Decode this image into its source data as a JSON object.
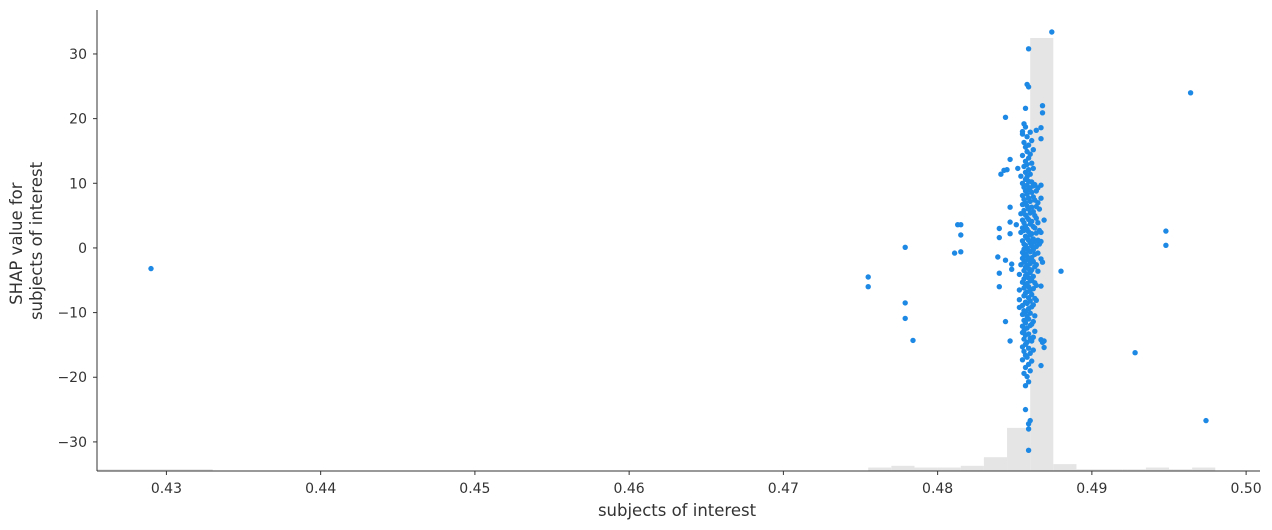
{
  "chart_data": {
    "type": "scatter",
    "title": "",
    "xlabel": "subjects of interest",
    "ylabel_lines": [
      "SHAP value for",
      "subjects of interest"
    ],
    "xlim": [
      0.4255,
      0.5009
    ],
    "ylim": [
      -34.5,
      36.8
    ],
    "xticks": [
      0.43,
      0.44,
      0.45,
      0.46,
      0.47,
      0.48,
      0.49,
      0.5
    ],
    "xtick_labels": [
      "0.43",
      "0.44",
      "0.45",
      "0.46",
      "0.47",
      "0.48",
      "0.49",
      "0.50"
    ],
    "yticks": [
      -30,
      -20,
      -10,
      0,
      10,
      20,
      30
    ],
    "ytick_labels": [
      "−30",
      "−20",
      "−10",
      "0",
      "10",
      "20",
      "30"
    ],
    "grid": false,
    "point_color": "#1e88e5",
    "hist_color": "#e5e5e5",
    "axis_color": "#333333",
    "histogram": {
      "bins": [
        {
          "x0": 0.4255,
          "x1": 0.433,
          "count": 1
        },
        {
          "x0": 0.4755,
          "x1": 0.477,
          "count": 2
        },
        {
          "x0": 0.477,
          "x1": 0.4785,
          "count": 3
        },
        {
          "x0": 0.4785,
          "x1": 0.48,
          "count": 2
        },
        {
          "x0": 0.48,
          "x1": 0.4815,
          "count": 2
        },
        {
          "x0": 0.4815,
          "x1": 0.483,
          "count": 3
        },
        {
          "x0": 0.483,
          "x1": 0.4845,
          "count": 8
        },
        {
          "x0": 0.4845,
          "x1": 0.486,
          "count": 25
        },
        {
          "x0": 0.486,
          "x1": 0.4875,
          "count": 251
        },
        {
          "x0": 0.4875,
          "x1": 0.489,
          "count": 4
        },
        {
          "x0": 0.489,
          "x1": 0.4905,
          "count": 1
        },
        {
          "x0": 0.4905,
          "x1": 0.492,
          "count": 1
        },
        {
          "x0": 0.492,
          "x1": 0.4935,
          "count": 1
        },
        {
          "x0": 0.4935,
          "x1": 0.495,
          "count": 2
        },
        {
          "x0": 0.495,
          "x1": 0.4965,
          "count": 1
        },
        {
          "x0": 0.4965,
          "x1": 0.498,
          "count": 2
        }
      ]
    },
    "points": [
      [
        0.429,
        -3.2
      ],
      [
        0.4755,
        -4.5
      ],
      [
        0.4755,
        -6.0
      ],
      [
        0.4779,
        0.1
      ],
      [
        0.4779,
        -8.5
      ],
      [
        0.4779,
        -10.9
      ],
      [
        0.4784,
        -14.3
      ],
      [
        0.4811,
        -0.8
      ],
      [
        0.4813,
        3.6
      ],
      [
        0.4815,
        3.6
      ],
      [
        0.4815,
        2.0
      ],
      [
        0.4815,
        -0.6
      ],
      [
        0.4839,
        -1.4
      ],
      [
        0.484,
        1.6
      ],
      [
        0.484,
        3.0
      ],
      [
        0.484,
        -3.9
      ],
      [
        0.484,
        -6.0
      ],
      [
        0.4841,
        11.4
      ],
      [
        0.4843,
        12.0
      ],
      [
        0.4844,
        20.2
      ],
      [
        0.4844,
        -1.9
      ],
      [
        0.4844,
        -11.4
      ],
      [
        0.4845,
        12.1
      ],
      [
        0.4847,
        13.7
      ],
      [
        0.4847,
        6.3
      ],
      [
        0.4847,
        4.0
      ],
      [
        0.4847,
        2.2
      ],
      [
        0.4847,
        -14.4
      ],
      [
        0.4848,
        -2.5
      ],
      [
        0.4848,
        -3.3
      ],
      [
        0.4851,
        3.6
      ],
      [
        0.4852,
        12.3
      ],
      [
        0.4853,
        -6.5
      ],
      [
        0.4853,
        -8.0
      ],
      [
        0.4853,
        -9.2
      ],
      [
        0.4853,
        -4.1
      ],
      [
        0.4854,
        -2.6
      ],
      [
        0.4854,
        2.4
      ],
      [
        0.4854,
        5.3
      ],
      [
        0.4854,
        11.1
      ],
      [
        0.4855,
        -12.1
      ],
      [
        0.4855,
        18.0
      ],
      [
        0.4855,
        17.6
      ],
      [
        0.4855,
        14.3
      ],
      [
        0.4855,
        10.0
      ],
      [
        0.4855,
        8.1
      ],
      [
        0.4855,
        6.7
      ],
      [
        0.4855,
        4.3
      ],
      [
        0.4855,
        3.1
      ],
      [
        0.4855,
        1.1
      ],
      [
        0.4855,
        -0.7
      ],
      [
        0.4855,
        -1.6
      ],
      [
        0.4855,
        -5.3
      ],
      [
        0.4855,
        -8.9
      ],
      [
        0.4855,
        -10.3
      ],
      [
        0.4855,
        -13.1
      ],
      [
        0.4855,
        -15.3
      ],
      [
        0.4855,
        -17.3
      ],
      [
        0.4857,
        21.6
      ],
      [
        0.4857,
        -18.5
      ],
      [
        0.4857,
        -21.3
      ],
      [
        0.4857,
        -25.0
      ],
      [
        0.4858,
        25.3
      ],
      [
        0.4859,
        30.8
      ],
      [
        0.4859,
        24.9
      ],
      [
        0.4859,
        -27.2
      ],
      [
        0.4859,
        -28.0
      ],
      [
        0.4859,
        -31.3
      ],
      [
        0.486,
        -26.7
      ],
      [
        0.4856,
        19.2
      ],
      [
        0.4856,
        16.3
      ],
      [
        0.4856,
        12.6
      ],
      [
        0.4856,
        9.4
      ],
      [
        0.4856,
        7.5
      ],
      [
        0.4856,
        5.8
      ],
      [
        0.4856,
        3.9
      ],
      [
        0.4856,
        2.7
      ],
      [
        0.4856,
        0.6
      ],
      [
        0.4856,
        -0.2
      ],
      [
        0.4856,
        -1.1
      ],
      [
        0.4856,
        -2.2
      ],
      [
        0.4856,
        -3.5
      ],
      [
        0.4856,
        -4.8
      ],
      [
        0.4856,
        -6.2
      ],
      [
        0.4856,
        -7.4
      ],
      [
        0.4856,
        -9.7
      ],
      [
        0.4856,
        -11.2
      ],
      [
        0.4856,
        -12.8
      ],
      [
        0.4856,
        -14.1
      ],
      [
        0.4856,
        -16.0
      ],
      [
        0.4856,
        -19.4
      ],
      [
        0.4857,
        18.7
      ],
      [
        0.4857,
        15.6
      ],
      [
        0.4857,
        13.4
      ],
      [
        0.4857,
        11.7
      ],
      [
        0.4857,
        10.6
      ],
      [
        0.4857,
        8.8
      ],
      [
        0.4857,
        7.0
      ],
      [
        0.4857,
        5.1
      ],
      [
        0.4857,
        3.4
      ],
      [
        0.4857,
        1.8
      ],
      [
        0.4857,
        0.4
      ],
      [
        0.4857,
        -0.9
      ],
      [
        0.4857,
        -2.0
      ],
      [
        0.4857,
        -3.0
      ],
      [
        0.4857,
        -4.3
      ],
      [
        0.4857,
        -5.7
      ],
      [
        0.4857,
        -7.0
      ],
      [
        0.4857,
        -8.4
      ],
      [
        0.4857,
        -9.9
      ],
      [
        0.4857,
        -11.6
      ],
      [
        0.4857,
        -13.5
      ],
      [
        0.4857,
        -14.9
      ],
      [
        0.4857,
        -16.6
      ],
      [
        0.4858,
        17.2
      ],
      [
        0.4858,
        14.9
      ],
      [
        0.4858,
        12.9
      ],
      [
        0.4858,
        11.0
      ],
      [
        0.4858,
        9.7
      ],
      [
        0.4858,
        8.3
      ],
      [
        0.4858,
        6.5
      ],
      [
        0.4858,
        4.7
      ],
      [
        0.4858,
        2.9
      ],
      [
        0.4858,
        1.5
      ],
      [
        0.4858,
        0.0
      ],
      [
        0.4858,
        -1.3
      ],
      [
        0.4858,
        -2.7
      ],
      [
        0.4858,
        -4.0
      ],
      [
        0.4858,
        -5.5
      ],
      [
        0.4858,
        -6.8
      ],
      [
        0.4858,
        -8.6
      ],
      [
        0.4858,
        -10.6
      ],
      [
        0.4858,
        -12.4
      ],
      [
        0.4858,
        -14.6
      ],
      [
        0.4858,
        -16.9
      ],
      [
        0.4858,
        -19.9
      ],
      [
        0.4859,
        15.9
      ],
      [
        0.4859,
        13.9
      ],
      [
        0.4859,
        12.1
      ],
      [
        0.4859,
        10.3
      ],
      [
        0.4859,
        9.0
      ],
      [
        0.4859,
        7.7
      ],
      [
        0.4859,
        6.0
      ],
      [
        0.4859,
        4.4
      ],
      [
        0.4859,
        2.5
      ],
      [
        0.4859,
        1.2
      ],
      [
        0.4859,
        -0.4
      ],
      [
        0.4859,
        -1.8
      ],
      [
        0.4859,
        -3.2
      ],
      [
        0.4859,
        -4.6
      ],
      [
        0.4859,
        -6.0
      ],
      [
        0.4859,
        -7.7
      ],
      [
        0.4859,
        -9.4
      ],
      [
        0.4859,
        -11.0
      ],
      [
        0.4859,
        -13.3
      ],
      [
        0.4859,
        -15.5
      ],
      [
        0.4859,
        -18.0
      ],
      [
        0.4859,
        -20.7
      ],
      [
        0.486,
        17.9
      ],
      [
        0.486,
        14.5
      ],
      [
        0.486,
        11.4
      ],
      [
        0.486,
        9.3
      ],
      [
        0.486,
        7.2
      ],
      [
        0.486,
        5.4
      ],
      [
        0.486,
        3.7
      ],
      [
        0.486,
        2.0
      ],
      [
        0.486,
        0.8
      ],
      [
        0.486,
        -0.6
      ],
      [
        0.486,
        -2.4
      ],
      [
        0.486,
        -3.8
      ],
      [
        0.486,
        -5.1
      ],
      [
        0.486,
        -6.6
      ],
      [
        0.486,
        -8.2
      ],
      [
        0.486,
        -10.1
      ],
      [
        0.486,
        -12.0
      ],
      [
        0.486,
        -14.0
      ],
      [
        0.486,
        -16.3
      ],
      [
        0.486,
        -19.0
      ],
      [
        0.4861,
        16.6
      ],
      [
        0.4861,
        13.1
      ],
      [
        0.4861,
        10.2
      ],
      [
        0.4861,
        8.6
      ],
      [
        0.4861,
        6.3
      ],
      [
        0.4861,
        4.1
      ],
      [
        0.4861,
        2.2
      ],
      [
        0.4861,
        0.3
      ],
      [
        0.4861,
        -1.5
      ],
      [
        0.4861,
        -3.4
      ],
      [
        0.4861,
        -5.0
      ],
      [
        0.4861,
        -7.2
      ],
      [
        0.4861,
        -9.1
      ],
      [
        0.4861,
        -11.8
      ],
      [
        0.4861,
        -14.4
      ],
      [
        0.4861,
        -17.5
      ],
      [
        0.4862,
        15.2
      ],
      [
        0.4862,
        12.3
      ],
      [
        0.4862,
        9.6
      ],
      [
        0.4862,
        7.9
      ],
      [
        0.4862,
        5.6
      ],
      [
        0.4862,
        3.3
      ],
      [
        0.4862,
        1.4
      ],
      [
        0.4862,
        -0.3
      ],
      [
        0.4862,
        -2.1
      ],
      [
        0.4862,
        -4.4
      ],
      [
        0.4862,
        -6.3
      ],
      [
        0.4862,
        -8.8
      ],
      [
        0.4862,
        -11.4
      ],
      [
        0.4862,
        -13.8
      ],
      [
        0.4862,
        -15.8
      ],
      [
        0.4863,
        9.8
      ],
      [
        0.4863,
        7.4
      ],
      [
        0.4863,
        5.0
      ],
      [
        0.4863,
        3.1
      ],
      [
        0.4863,
        0.9
      ],
      [
        0.4863,
        -1.0
      ],
      [
        0.4863,
        -2.9
      ],
      [
        0.4863,
        -5.4
      ],
      [
        0.4863,
        -7.8
      ],
      [
        0.4863,
        -10.5
      ],
      [
        0.4863,
        -12.9
      ],
      [
        0.4864,
        18.2
      ],
      [
        0.4864,
        8.8
      ],
      [
        0.4864,
        6.4
      ],
      [
        0.4864,
        4.6
      ],
      [
        0.4864,
        2.3
      ],
      [
        0.4864,
        0.2
      ],
      [
        0.4864,
        -2.6
      ],
      [
        0.4864,
        -5.8
      ],
      [
        0.4864,
        -8.1
      ],
      [
        0.4865,
        9.3
      ],
      [
        0.4865,
        7.0
      ],
      [
        0.4865,
        3.9
      ],
      [
        0.4865,
        1.2
      ],
      [
        0.4865,
        -0.8
      ],
      [
        0.4865,
        -3.6
      ],
      [
        0.4866,
        6.0
      ],
      [
        0.4866,
        2.7
      ],
      [
        0.4866,
        0.6
      ],
      [
        0.4867,
        18.6
      ],
      [
        0.4867,
        16.9
      ],
      [
        0.4867,
        9.7
      ],
      [
        0.4867,
        7.7
      ],
      [
        0.4867,
        2.4
      ],
      [
        0.4867,
        1.0
      ],
      [
        0.4867,
        -1.7
      ],
      [
        0.4867,
        -5.9
      ],
      [
        0.4867,
        -14.2
      ],
      [
        0.4867,
        -18.2
      ],
      [
        0.4868,
        22.0
      ],
      [
        0.4868,
        20.9
      ],
      [
        0.4868,
        -2.2
      ],
      [
        0.4868,
        -14.6
      ],
      [
        0.4869,
        4.3
      ],
      [
        0.4869,
        -14.4
      ],
      [
        0.4869,
        -15.4
      ],
      [
        0.4874,
        33.4
      ],
      [
        0.488,
        -3.6
      ],
      [
        0.4928,
        -16.2
      ],
      [
        0.4948,
        2.6
      ],
      [
        0.4948,
        0.4
      ],
      [
        0.4964,
        24.0
      ],
      [
        0.4974,
        -26.7
      ]
    ]
  }
}
